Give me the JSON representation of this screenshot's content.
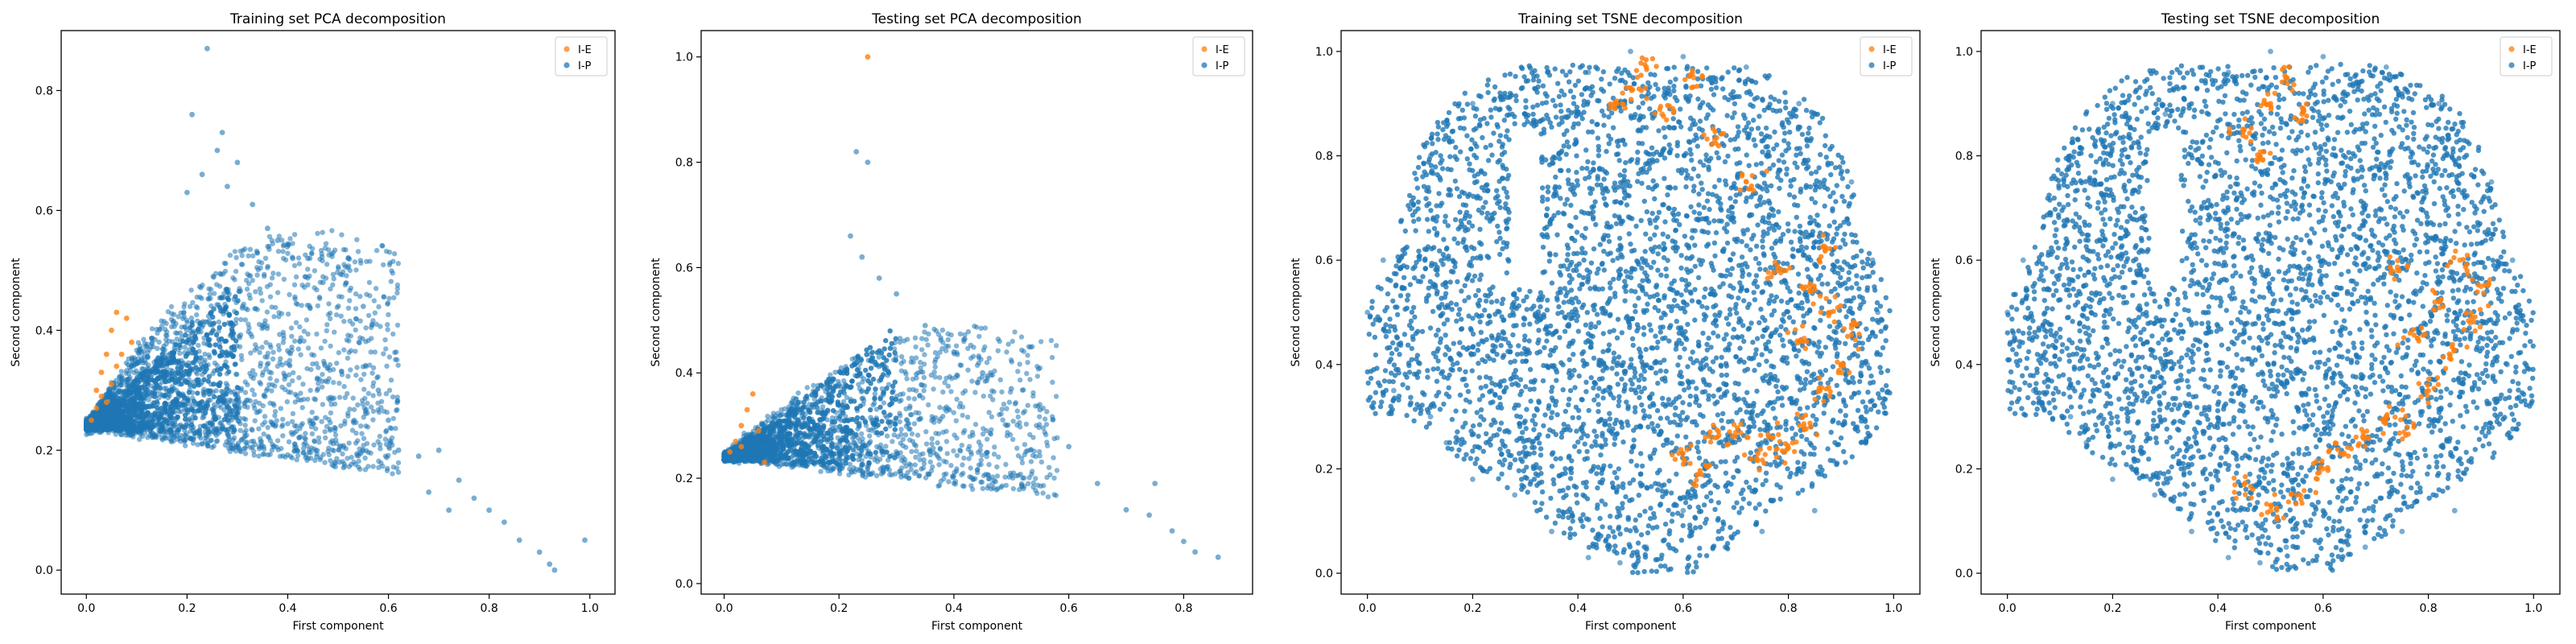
{
  "figure": {
    "background": "#ffffff",
    "colors": {
      "ie": "#ff7f0e",
      "ip": "#1f77b4",
      "axis": "#000000"
    }
  },
  "chart_data": [
    {
      "type": "scatter",
      "title": "Training set PCA decomposition",
      "xlabel": "First component",
      "ylabel": "Second component",
      "xlim": [
        -0.05,
        1.05
      ],
      "ylim": [
        -0.04,
        0.9
      ],
      "xticks": [
        0.0,
        0.2,
        0.4,
        0.6,
        0.8,
        1.0
      ],
      "yticks": [
        0.0,
        0.2,
        0.4,
        0.6,
        0.8
      ],
      "grid": false,
      "legend": "top-right",
      "series": [
        {
          "name": "I-E",
          "color": "#ff7f0e",
          "points": [
            [
              0.01,
              0.25
            ],
            [
              0.02,
              0.27
            ],
            [
              0.03,
              0.29
            ],
            [
              0.03,
              0.33
            ],
            [
              0.04,
              0.36
            ],
            [
              0.05,
              0.4
            ],
            [
              0.06,
              0.43
            ],
            [
              0.05,
              0.31
            ],
            [
              0.02,
              0.3
            ],
            [
              0.07,
              0.36
            ],
            [
              0.04,
              0.28
            ],
            [
              0.08,
              0.42
            ],
            [
              0.09,
              0.38
            ],
            [
              0.06,
              0.34
            ]
          ]
        },
        {
          "name": "I-P",
          "color": "#1f77b4",
          "points": [
            [
              0.24,
              0.87
            ],
            [
              0.21,
              0.76
            ],
            [
              0.27,
              0.73
            ],
            [
              0.26,
              0.7
            ],
            [
              0.3,
              0.68
            ],
            [
              0.23,
              0.66
            ],
            [
              0.2,
              0.63
            ],
            [
              0.28,
              0.64
            ],
            [
              0.33,
              0.61
            ],
            [
              0.36,
              0.57
            ],
            [
              0.38,
              0.55
            ],
            [
              0.41,
              0.52
            ],
            [
              0.44,
              0.52
            ],
            [
              0.52,
              0.52
            ],
            [
              0.47,
              0.48
            ],
            [
              0.55,
              0.44
            ],
            [
              0.58,
              0.3
            ],
            [
              0.6,
              0.25
            ],
            [
              0.62,
              0.2
            ],
            [
              0.66,
              0.19
            ],
            [
              0.7,
              0.2
            ],
            [
              0.74,
              0.15
            ],
            [
              0.77,
              0.12
            ],
            [
              0.8,
              0.1
            ],
            [
              0.83,
              0.08
            ],
            [
              0.86,
              0.05
            ],
            [
              0.9,
              0.03
            ],
            [
              0.92,
              0.01
            ],
            [
              0.93,
              0.0
            ],
            [
              0.99,
              0.05
            ],
            [
              0.68,
              0.13
            ],
            [
              0.72,
              0.1
            ]
          ]
        }
      ]
    },
    {
      "type": "scatter",
      "title": "Testing set PCA decomposition",
      "xlabel": "First component",
      "ylabel": "Second component",
      "xlim": [
        -0.04,
        0.92
      ],
      "ylim": [
        -0.02,
        1.05
      ],
      "xticks": [
        0.0,
        0.2,
        0.4,
        0.6,
        0.8
      ],
      "yticks": [
        0.0,
        0.2,
        0.4,
        0.6,
        0.8,
        1.0
      ],
      "grid": false,
      "legend": "top-right",
      "series": [
        {
          "name": "I-E",
          "color": "#ff7f0e",
          "points": [
            [
              0.25,
              1.0
            ],
            [
              0.01,
              0.25
            ],
            [
              0.02,
              0.27
            ],
            [
              0.03,
              0.3
            ],
            [
              0.04,
              0.33
            ],
            [
              0.05,
              0.36
            ],
            [
              0.06,
              0.29
            ],
            [
              0.07,
              0.23
            ],
            [
              0.03,
              0.26
            ]
          ]
        },
        {
          "name": "I-P",
          "color": "#1f77b4",
          "points": [
            [
              0.23,
              0.82
            ],
            [
              0.25,
              0.8
            ],
            [
              0.22,
              0.66
            ],
            [
              0.24,
              0.62
            ],
            [
              0.27,
              0.58
            ],
            [
              0.3,
              0.55
            ],
            [
              0.35,
              0.49
            ],
            [
              0.4,
              0.44
            ],
            [
              0.45,
              0.4
            ],
            [
              0.5,
              0.37
            ],
            [
              0.55,
              0.33
            ],
            [
              0.6,
              0.26
            ],
            [
              0.65,
              0.19
            ],
            [
              0.7,
              0.14
            ],
            [
              0.74,
              0.13
            ],
            [
              0.78,
              0.1
            ],
            [
              0.8,
              0.08
            ],
            [
              0.82,
              0.06
            ],
            [
              0.86,
              0.05
            ],
            [
              0.75,
              0.19
            ]
          ]
        }
      ]
    },
    {
      "type": "scatter",
      "title": "Training set TSNE decomposition",
      "xlabel": "First component",
      "ylabel": "Second component",
      "xlim": [
        -0.05,
        1.05
      ],
      "ylim": [
        -0.04,
        1.04
      ],
      "xticks": [
        0.0,
        0.2,
        0.4,
        0.6,
        0.8,
        1.0
      ],
      "yticks": [
        0.0,
        0.2,
        0.4,
        0.6,
        0.8,
        1.0
      ],
      "grid": false,
      "legend": "top-right",
      "series": [
        {
          "name": "I-E",
          "color": "#ff7f0e",
          "points": [
            [
              0.5,
              0.93
            ],
            [
              0.53,
              0.97
            ],
            [
              0.47,
              0.9
            ],
            [
              0.56,
              0.88
            ],
            [
              0.62,
              0.95
            ],
            [
              0.6,
              0.22
            ],
            [
              0.63,
              0.19
            ],
            [
              0.66,
              0.26
            ],
            [
              0.7,
              0.27
            ],
            [
              0.74,
              0.22
            ],
            [
              0.77,
              0.26
            ],
            [
              0.8,
              0.24
            ],
            [
              0.83,
              0.28
            ],
            [
              0.86,
              0.35
            ],
            [
              0.9,
              0.4
            ],
            [
              0.92,
              0.47
            ],
            [
              0.88,
              0.5
            ],
            [
              0.84,
              0.55
            ],
            [
              0.83,
              0.45
            ],
            [
              0.87,
              0.62
            ],
            [
              0.78,
              0.58
            ],
            [
              0.72,
              0.75
            ],
            [
              0.66,
              0.83
            ]
          ]
        },
        {
          "name": "I-P",
          "color": "#1f77b4",
          "points": [
            [
              0.0,
              0.5
            ],
            [
              0.03,
              0.6
            ],
            [
              0.05,
              0.35
            ],
            [
              0.12,
              0.3
            ],
            [
              0.15,
              0.25
            ],
            [
              0.2,
              0.18
            ],
            [
              0.28,
              0.15
            ],
            [
              0.35,
              0.08
            ],
            [
              0.42,
              0.03
            ],
            [
              0.48,
              0.02
            ],
            [
              0.53,
              0.05
            ],
            [
              0.6,
              0.12
            ],
            [
              0.68,
              0.05
            ],
            [
              0.75,
              0.08
            ],
            [
              0.85,
              0.12
            ],
            [
              0.95,
              0.4
            ],
            [
              0.97,
              0.5
            ],
            [
              0.96,
              0.6
            ],
            [
              0.92,
              0.75
            ],
            [
              0.82,
              0.9
            ],
            [
              0.72,
              0.97
            ],
            [
              0.6,
              0.99
            ],
            [
              0.5,
              1.0
            ],
            [
              0.42,
              0.96
            ],
            [
              0.3,
              0.88
            ],
            [
              0.2,
              0.9
            ],
            [
              0.12,
              0.8
            ]
          ]
        }
      ]
    },
    {
      "type": "scatter",
      "title": "Testing set TSNE decomposition",
      "xlabel": "First component",
      "ylabel": "Second component",
      "xlim": [
        -0.05,
        1.05
      ],
      "ylim": [
        -0.04,
        1.04
      ],
      "xticks": [
        0.0,
        0.2,
        0.4,
        0.6,
        0.8,
        1.0
      ],
      "yticks": [
        0.0,
        0.2,
        0.4,
        0.6,
        0.8,
        1.0
      ],
      "grid": false,
      "legend": "top-right",
      "series": [
        {
          "name": "I-E",
          "color": "#ff7f0e",
          "points": [
            [
              0.45,
              0.85
            ],
            [
              0.5,
              0.9
            ],
            [
              0.53,
              0.95
            ],
            [
              0.56,
              0.88
            ],
            [
              0.48,
              0.8
            ],
            [
              0.6,
              0.2
            ],
            [
              0.64,
              0.23
            ],
            [
              0.68,
              0.26
            ],
            [
              0.72,
              0.3
            ],
            [
              0.76,
              0.28
            ],
            [
              0.8,
              0.35
            ],
            [
              0.84,
              0.42
            ],
            [
              0.88,
              0.48
            ],
            [
              0.9,
              0.55
            ],
            [
              0.86,
              0.6
            ],
            [
              0.82,
              0.52
            ],
            [
              0.78,
              0.45
            ],
            [
              0.74,
              0.58
            ],
            [
              0.55,
              0.15
            ],
            [
              0.5,
              0.12
            ],
            [
              0.45,
              0.17
            ]
          ]
        },
        {
          "name": "I-P",
          "color": "#1f77b4",
          "points": [
            [
              0.0,
              0.5
            ],
            [
              0.03,
              0.6
            ],
            [
              0.05,
              0.35
            ],
            [
              0.12,
              0.3
            ],
            [
              0.15,
              0.25
            ],
            [
              0.2,
              0.18
            ],
            [
              0.28,
              0.15
            ],
            [
              0.35,
              0.08
            ],
            [
              0.42,
              0.03
            ],
            [
              0.48,
              0.02
            ],
            [
              0.53,
              0.05
            ],
            [
              0.6,
              0.12
            ],
            [
              0.68,
              0.05
            ],
            [
              0.75,
              0.08
            ],
            [
              0.85,
              0.12
            ],
            [
              0.95,
              0.4
            ],
            [
              0.97,
              0.5
            ],
            [
              0.96,
              0.6
            ],
            [
              0.92,
              0.75
            ],
            [
              0.82,
              0.9
            ],
            [
              0.72,
              0.97
            ],
            [
              0.6,
              0.99
            ],
            [
              0.5,
              1.0
            ],
            [
              0.42,
              0.96
            ],
            [
              0.3,
              0.88
            ],
            [
              0.2,
              0.9
            ],
            [
              0.12,
              0.8
            ]
          ]
        }
      ]
    }
  ]
}
